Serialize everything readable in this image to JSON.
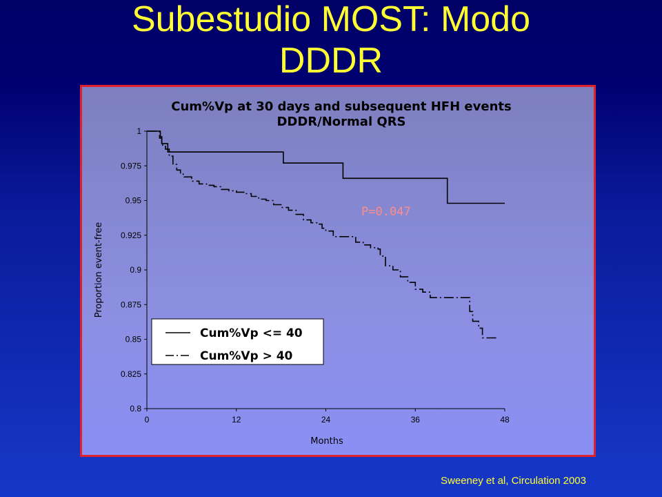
{
  "slide": {
    "title_line1": "Subestudio MOST: Modo",
    "title_line2": "DDDR",
    "citation": "Sweeney et al, Circulation 2003"
  },
  "colors": {
    "title": "#ffff33",
    "frame_border": "#e0202a",
    "p_value": "#ff8c8c"
  },
  "chart_data": {
    "type": "line",
    "title": "Cum%Vp at 30 days and subsequent HFH events",
    "subtitle": "DDDR/Normal QRS",
    "xlabel": "Months",
    "ylabel": "Proportion event-free",
    "xlim": [
      0,
      48
    ],
    "ylim": [
      0.8,
      1
    ],
    "x_ticks": [
      0,
      12,
      24,
      36,
      48
    ],
    "y_ticks": [
      0.8,
      0.825,
      0.85,
      0.875,
      0.9,
      0.925,
      0.95,
      0.975,
      1
    ],
    "y_tick_labels": [
      "0.8",
      "0.825",
      "0.85",
      "0.875",
      "0.9",
      "0.925",
      "0.95",
      "0.975",
      "1"
    ],
    "grid": false,
    "legend_position": "lower-left",
    "annotation": "P=0.047",
    "series": [
      {
        "name": "Cum%Vp <= 40",
        "style": "solid",
        "step_points": [
          [
            0,
            1
          ],
          [
            1.8,
            1
          ],
          [
            1.8,
            0.996
          ],
          [
            2,
            0.996
          ],
          [
            2,
            0.991
          ],
          [
            2.8,
            0.991
          ],
          [
            2.8,
            0.985
          ],
          [
            18.3,
            0.985
          ],
          [
            18.3,
            0.977
          ],
          [
            26.3,
            0.977
          ],
          [
            26.3,
            0.966
          ],
          [
            40.3,
            0.966
          ],
          [
            40.3,
            0.948
          ],
          [
            48,
            0.948
          ]
        ]
      },
      {
        "name": "Cum%Vp > 40",
        "style": "dash-dot",
        "step_points": [
          [
            0,
            1
          ],
          [
            1.5,
            1
          ],
          [
            1.7,
            0.995
          ],
          [
            2,
            0.99
          ],
          [
            2.5,
            0.987
          ],
          [
            3,
            0.982
          ],
          [
            3.5,
            0.976
          ],
          [
            4,
            0.972
          ],
          [
            4.5,
            0.969
          ],
          [
            5,
            0.967
          ],
          [
            6,
            0.964
          ],
          [
            7,
            0.962
          ],
          [
            8,
            0.961
          ],
          [
            9,
            0.96
          ],
          [
            10,
            0.958
          ],
          [
            11,
            0.957
          ],
          [
            12,
            0.956
          ],
          [
            13,
            0.955
          ],
          [
            14,
            0.953
          ],
          [
            15,
            0.951
          ],
          [
            16,
            0.95
          ],
          [
            17,
            0.947
          ],
          [
            18,
            0.945
          ],
          [
            19,
            0.943
          ],
          [
            20,
            0.94
          ],
          [
            21,
            0.936
          ],
          [
            22,
            0.934
          ],
          [
            23,
            0.933
          ],
          [
            23.5,
            0.93
          ],
          [
            24,
            0.928
          ],
          [
            25,
            0.924
          ],
          [
            27,
            0.924
          ],
          [
            28,
            0.92
          ],
          [
            29,
            0.918
          ],
          [
            30,
            0.916
          ],
          [
            31,
            0.915
          ],
          [
            31.3,
            0.91
          ],
          [
            32,
            0.903
          ],
          [
            33,
            0.9
          ],
          [
            34,
            0.895
          ],
          [
            35,
            0.891
          ],
          [
            36,
            0.886
          ],
          [
            37,
            0.884
          ],
          [
            38,
            0.88
          ],
          [
            43,
            0.88
          ],
          [
            43.3,
            0.87
          ],
          [
            43.7,
            0.863
          ],
          [
            44.5,
            0.858
          ],
          [
            45,
            0.851
          ],
          [
            47,
            0.851
          ]
        ]
      }
    ]
  }
}
